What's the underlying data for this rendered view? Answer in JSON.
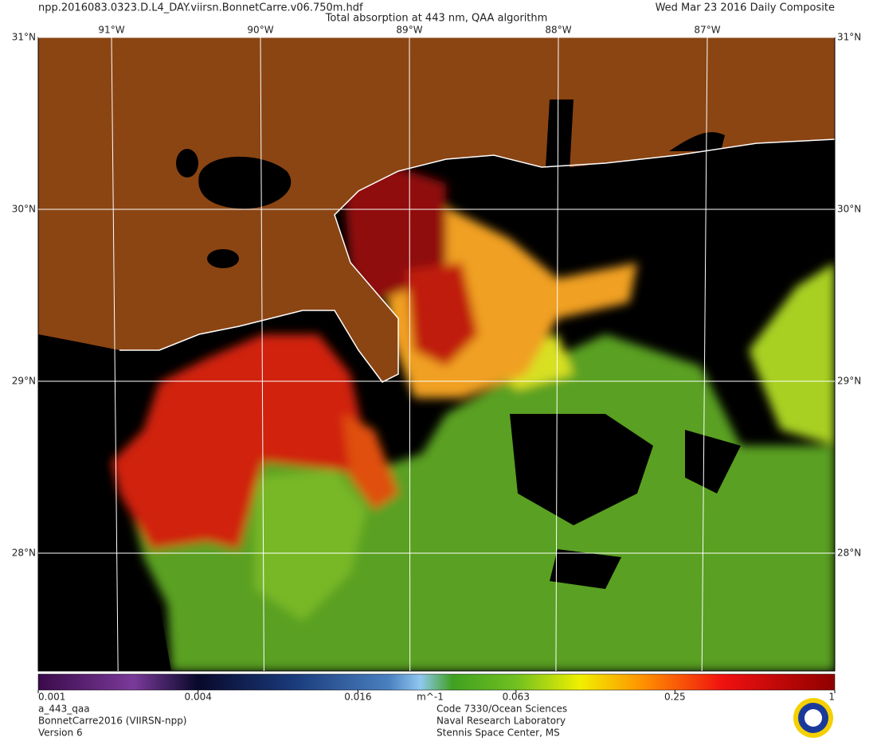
{
  "header": {
    "file": "npp.2016083.0323.D.L4_DAY.viirsn.BonnetCarre.v06.750m.hdf",
    "title": "Total absorption at 443 nm, QAA algorithm",
    "date": "Wed Mar 23 2016 Daily Composite"
  },
  "map": {
    "longitudes": [
      {
        "value": -91,
        "label": "91°W"
      },
      {
        "value": -90,
        "label": "90°W"
      },
      {
        "value": -89,
        "label": "89°W"
      },
      {
        "value": -88,
        "label": "88°W"
      },
      {
        "value": -87,
        "label": "87°W"
      }
    ],
    "latitudes": [
      {
        "value": 31,
        "label": "31°N"
      },
      {
        "value": 30,
        "label": "30°N"
      },
      {
        "value": 29,
        "label": "29°N"
      },
      {
        "value": 28,
        "label": "28°N"
      }
    ]
  },
  "colorbar": {
    "log": true,
    "range": [
      0.001,
      1
    ],
    "ticks": [
      0.001,
      0.004,
      0.016,
      0.063,
      0.25,
      1
    ],
    "unit": "m^-1"
  },
  "footer": {
    "left": [
      "a_443_qaa",
      "BonnetCarre2016 (VIIRSN-npp)",
      "Version 6"
    ],
    "center": [
      "Code 7330/Ocean Sciences",
      "Naval Research Laboratory",
      "Stennis Space Center, MS"
    ]
  }
}
